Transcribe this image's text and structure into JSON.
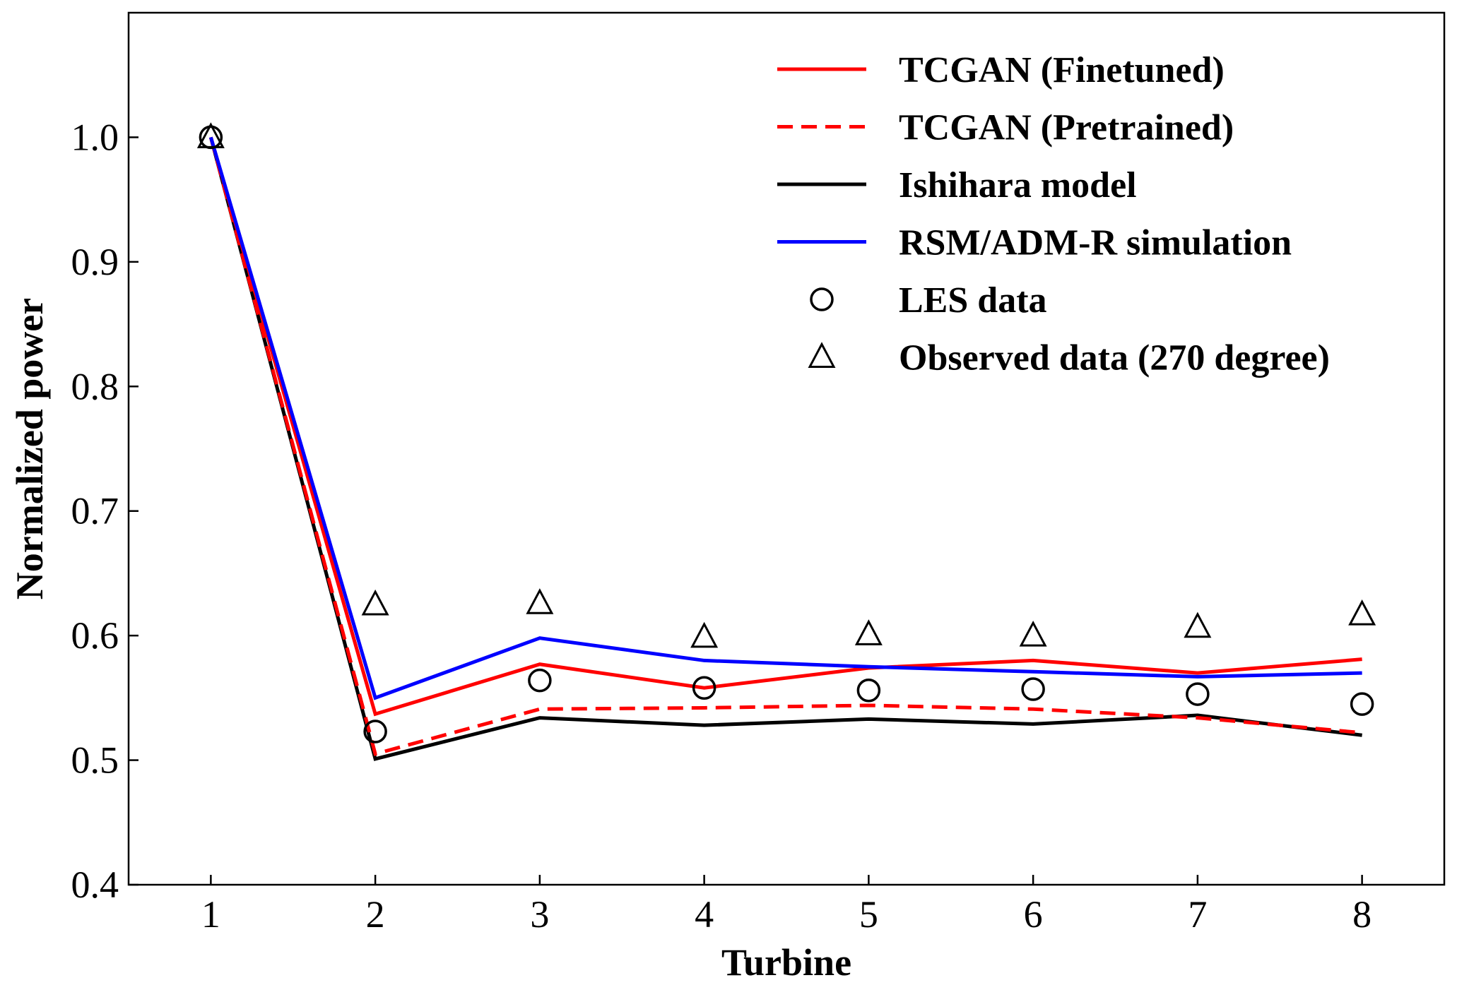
{
  "chart_data": {
    "type": "line",
    "xlabel": "Turbine",
    "ylabel": "Normalized power",
    "x": [
      1,
      2,
      3,
      4,
      5,
      6,
      7,
      8
    ],
    "xlim": [
      0.5,
      8.5
    ],
    "ylim": [
      0.4,
      1.1
    ],
    "yticks": [
      0.4,
      0.5,
      0.6,
      0.7,
      0.8,
      0.9,
      1.0
    ],
    "ytick_labels": [
      "0.4",
      "0.5",
      "0.6",
      "0.7",
      "0.8",
      "0.9",
      "1.0"
    ],
    "xticks": [
      1,
      2,
      3,
      4,
      5,
      6,
      7,
      8
    ],
    "xtick_labels": [
      "1",
      "2",
      "3",
      "4",
      "5",
      "6",
      "7",
      "8"
    ],
    "grid": false,
    "legend_position": "top-right",
    "series": [
      {
        "name": "TCGAN (Finetuned)",
        "style": "solid-line",
        "color": "#ff0000",
        "values": [
          1.0,
          0.537,
          0.577,
          0.558,
          0.574,
          0.58,
          0.57,
          0.581
        ]
      },
      {
        "name": "TCGAN (Pretrained)",
        "style": "dashed-line",
        "color": "#ff0000",
        "values": [
          1.0,
          0.505,
          0.541,
          0.542,
          0.544,
          0.541,
          0.534,
          0.522
        ]
      },
      {
        "name": "Ishihara model",
        "style": "solid-line",
        "color": "#000000",
        "values": [
          1.0,
          0.501,
          0.534,
          0.528,
          0.533,
          0.529,
          0.536,
          0.52
        ]
      },
      {
        "name": "RSM/ADM-R simulation",
        "style": "solid-line",
        "color": "#0000ff",
        "values": [
          1.0,
          0.55,
          0.598,
          0.58,
          0.575,
          0.571,
          0.567,
          0.57
        ]
      },
      {
        "name": "LES data",
        "style": "circle-marker",
        "color": "#000000",
        "values": [
          1.0,
          0.523,
          0.564,
          0.558,
          0.556,
          0.557,
          0.553,
          0.545
        ]
      },
      {
        "name": "Observed data (270 degree)",
        "style": "triangle-marker",
        "color": "#000000",
        "values": [
          1.0,
          0.625,
          0.626,
          0.599,
          0.601,
          0.6,
          0.607,
          0.617
        ]
      }
    ]
  }
}
